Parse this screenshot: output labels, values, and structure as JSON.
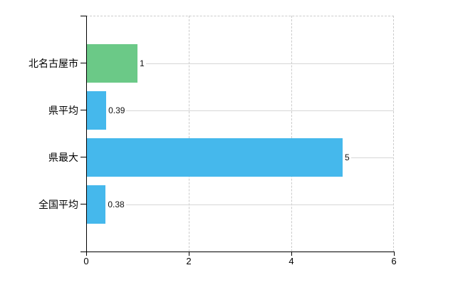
{
  "chart_data": {
    "type": "bar",
    "orientation": "horizontal",
    "title": "",
    "categories": [
      "北名古屋市",
      "県平均",
      "県最大",
      "全国平均"
    ],
    "values": [
      1,
      0.39,
      5,
      0.38
    ],
    "value_labels": [
      "1",
      "0.39",
      "5",
      "0.38"
    ],
    "colors": [
      "#6bc987",
      "#45b8ec",
      "#45b8ec",
      "#45b8ec"
    ],
    "xlim": [
      0,
      6
    ],
    "x_ticks": [
      "0",
      "2",
      "4",
      "6"
    ],
    "grid": "dashed vertical gridlines at 2,4,6; dashed top border; solid light leader line from each value label to right edge",
    "legend": "none"
  },
  "colors": {
    "bar_green": "#6bc987",
    "bar_blue": "#45b8ec",
    "axis": "#000000",
    "dashed_grid": "#cbcbcb",
    "leader_line": "#d6d6d6",
    "background": "#ffffff"
  }
}
